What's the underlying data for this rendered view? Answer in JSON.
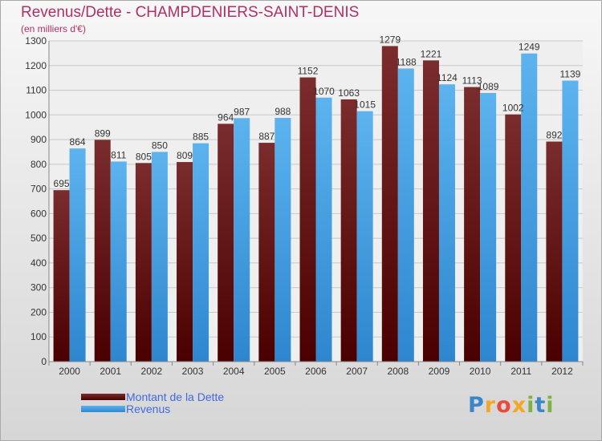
{
  "title": "Revenus/Dette - CHAMPDENIERS-SAINT-DENIS",
  "subtitle": "(en milliers d'€)",
  "legend": {
    "debt_label": "Montant de la Dette",
    "revenue_label": "Revenus"
  },
  "logo": {
    "text": "Proxiti"
  },
  "colors": {
    "debt_top": "#7b2c2c",
    "debt_bottom": "#4a0000",
    "revenue_top": "#5cb3ee",
    "revenue_bottom": "#2e86cf",
    "title": "#b03060",
    "legend_text": "#4169e1"
  },
  "chart_data": {
    "type": "bar",
    "categories": [
      "2000",
      "2001",
      "2002",
      "2003",
      "2004",
      "2005",
      "2006",
      "2007",
      "2008",
      "2009",
      "2010",
      "2011",
      "2012"
    ],
    "series": [
      {
        "name": "Montant de la Dette",
        "values": [
          695,
          899,
          805,
          809,
          964,
          887,
          1152,
          1063,
          1279,
          1221,
          1113,
          1002,
          892
        ]
      },
      {
        "name": "Revenus",
        "values": [
          864,
          811,
          850,
          885,
          987,
          988,
          1070,
          1015,
          1188,
          1124,
          1089,
          1249,
          1139
        ]
      }
    ],
    "title": "Revenus/Dette - CHAMPDENIERS-SAINT-DENIS",
    "xlabel": "",
    "ylabel": "",
    "ylim": [
      0,
      1300
    ],
    "yticks": [
      0,
      100,
      200,
      300,
      400,
      500,
      600,
      700,
      800,
      900,
      1000,
      1100,
      1200,
      1300
    ],
    "grid": true,
    "legend_position": "bottom-left"
  }
}
